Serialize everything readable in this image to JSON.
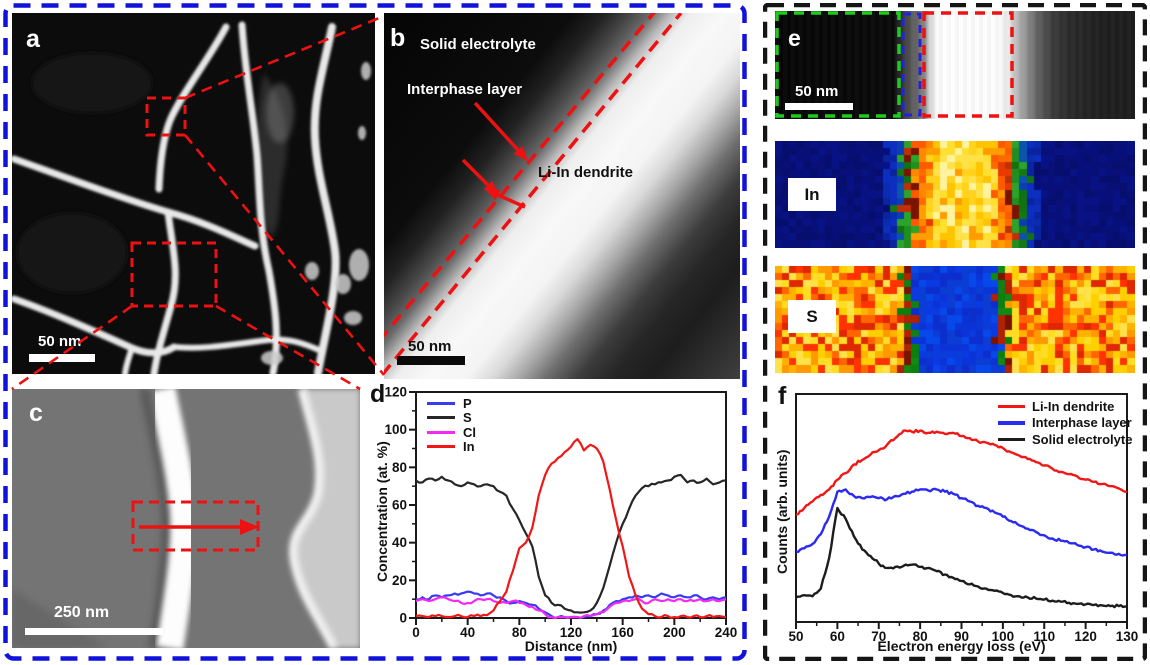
{
  "panels": {
    "a": {
      "label": "a",
      "scalebar": "50 nm"
    },
    "b": {
      "label": "b",
      "scalebar": "50 nm",
      "annotations": {
        "solid_electrolyte": "Solid electrolyte",
        "interphase_layer": "Interphase layer",
        "li_in_dendrite": "Li-In dendrite"
      }
    },
    "c": {
      "label": "c",
      "scalebar": "250 nm"
    },
    "d": {
      "label": "d"
    },
    "e": {
      "label": "e",
      "scalebar": "50 nm"
    },
    "f": {
      "label": "f"
    }
  },
  "element_maps": [
    {
      "label": "In",
      "band_center": 0.52,
      "zones": [
        [
          0.095,
          [
            "#ffd21e",
            "#ffe24a",
            "#ffc400",
            "#fff3a0",
            "#ff9d00",
            "#ffdf30"
          ]
        ],
        [
          0.135,
          [
            "#ff8800",
            "#ff5a00",
            "#e83a00",
            "#ff9e00",
            "#ff6a00"
          ]
        ],
        [
          0.16,
          [
            "#c03000",
            "#1f8f1f",
            "#2aa42a",
            "#7a1400"
          ]
        ],
        [
          0.185,
          [
            "#157815",
            "#0a55aa",
            "#0a3fb4",
            "#117211"
          ]
        ],
        [
          0.215,
          [
            "#0a2cb0",
            "#0a24a0",
            "#0c2fc0"
          ]
        ],
        [
          9,
          [
            "#081284",
            "#060e6e",
            "#081078",
            "#070f7a"
          ]
        ]
      ]
    },
    {
      "label": "S",
      "band_center": 0.505,
      "zones": [
        [
          0.115,
          [
            "#0a3ae0",
            "#0c2ecc",
            "#0748ea",
            "#0a34d8",
            "#0b3cd4"
          ]
        ],
        [
          0.15,
          [
            "#0c800c",
            "#b02200",
            "#108a10",
            "#7a1200",
            "#128012"
          ]
        ],
        [
          9,
          [
            "#ffd000",
            "#ff9900",
            "#ff6600",
            "#ff3300",
            "#ffe24a",
            "#e02800",
            "#ffb300",
            "#ffdd22"
          ]
        ]
      ]
    }
  ],
  "chart_data": [
    {
      "id": "concentration-profile",
      "type": "line",
      "xlabel": "Distance (nm)",
      "ylabel": "Concentration (at. %)",
      "xlim": [
        0,
        240
      ],
      "ylim": [
        0,
        120
      ],
      "xticks_major": 40,
      "xticks_minor": 20,
      "yticks_major": 20,
      "yticks_minor": 10,
      "x_start": 0,
      "x_step": 5,
      "legend_position": "top-left",
      "series": [
        {
          "name": "P",
          "color": "#3a3af2",
          "values": [
            10,
            11,
            10,
            12,
            11,
            12,
            13,
            13,
            14,
            13,
            12,
            13,
            12,
            11,
            9,
            8,
            9,
            8,
            7,
            5,
            3,
            1,
            0.5,
            0.5,
            0.5,
            0.5,
            0.5,
            1,
            2,
            4,
            7,
            9,
            10,
            11,
            12,
            11,
            12,
            11,
            13,
            12,
            11,
            12,
            11,
            12,
            11,
            10,
            11,
            10,
            11
          ]
        },
        {
          "name": "S",
          "color": "#262626",
          "values": [
            73,
            72,
            74,
            73,
            75,
            73,
            71,
            70,
            72,
            71,
            70,
            71,
            70,
            67,
            65,
            58,
            52,
            45,
            38,
            22,
            12,
            8,
            7,
            5,
            4,
            3,
            3,
            4,
            8,
            16,
            28,
            40,
            50,
            58,
            65,
            69,
            70,
            71,
            72,
            73,
            75,
            76,
            72,
            73,
            72,
            74,
            71,
            72,
            73
          ]
        },
        {
          "name": "Cl",
          "color": "#f22af2",
          "values": [
            9,
            10,
            9,
            10,
            11,
            10,
            9,
            8,
            8,
            9,
            10,
            10,
            9,
            8,
            8,
            9,
            8,
            7,
            6,
            4,
            2,
            0.5,
            0.5,
            0.5,
            0.5,
            0.5,
            1,
            1,
            2,
            3,
            6,
            8,
            9,
            9,
            10,
            9,
            8,
            10,
            9,
            10,
            9,
            10,
            9,
            9,
            10,
            9,
            10,
            9,
            10
          ]
        },
        {
          "name": "In",
          "color": "#f21717",
          "values": [
            1,
            1,
            0.5,
            1,
            1,
            0.5,
            1,
            1,
            0.5,
            1,
            1,
            1.5,
            4,
            9,
            14,
            25,
            37,
            40,
            48,
            65,
            76,
            82,
            85,
            88,
            91,
            95,
            89,
            92,
            90,
            83,
            68,
            52,
            38,
            22,
            12,
            5,
            2,
            1,
            0.5,
            1,
            0.5,
            1,
            0.5,
            1,
            0.5,
            1,
            0.5,
            1,
            0.5
          ]
        }
      ]
    },
    {
      "id": "eels-spectra",
      "type": "line",
      "xlabel": "Electron energy loss (eV)",
      "ylabel": "Counts (arb. units)",
      "xlim": [
        50,
        130
      ],
      "ylim": [
        0,
        1
      ],
      "xticks_major": 10,
      "xticks_minor": 5,
      "yticks": "none (arbitrary units)",
      "x_start": 50,
      "x_step": 2,
      "legend_position": "top-right",
      "series": [
        {
          "name": "Li-In dendrite",
          "color": "#f21717",
          "values": [
            0.47,
            0.5,
            0.53,
            0.56,
            0.585,
            0.63,
            0.66,
            0.7,
            0.72,
            0.745,
            0.765,
            0.79,
            0.82,
            0.855,
            0.85,
            0.855,
            0.845,
            0.85,
            0.84,
            0.845,
            0.83,
            0.82,
            0.805,
            0.8,
            0.79,
            0.775,
            0.755,
            0.74,
            0.725,
            0.71,
            0.695,
            0.68,
            0.665,
            0.655,
            0.645,
            0.63,
            0.62,
            0.61,
            0.6,
            0.59,
            0.575
          ]
        },
        {
          "name": "Interphase layer",
          "color": "#2a2af2",
          "values": [
            0.3,
            0.315,
            0.335,
            0.38,
            0.46,
            0.575,
            0.585,
            0.555,
            0.545,
            0.55,
            0.545,
            0.54,
            0.555,
            0.565,
            0.575,
            0.585,
            0.58,
            0.585,
            0.575,
            0.565,
            0.545,
            0.53,
            0.51,
            0.5,
            0.48,
            0.46,
            0.44,
            0.42,
            0.405,
            0.39,
            0.375,
            0.36,
            0.35,
            0.34,
            0.33,
            0.32,
            0.31,
            0.3,
            0.295,
            0.29,
            0.285
          ]
        },
        {
          "name": "Solid electrolyte",
          "color": "#1c1c1c",
          "values": [
            0.09,
            0.1,
            0.095,
            0.13,
            0.27,
            0.5,
            0.45,
            0.37,
            0.31,
            0.28,
            0.245,
            0.225,
            0.23,
            0.235,
            0.24,
            0.23,
            0.225,
            0.21,
            0.195,
            0.18,
            0.165,
            0.15,
            0.14,
            0.13,
            0.12,
            0.11,
            0.1,
            0.095,
            0.09,
            0.085,
            0.08,
            0.075,
            0.07,
            0.065,
            0.06,
            0.058,
            0.055,
            0.053,
            0.05,
            0.05,
            0.048
          ]
        }
      ]
    }
  ],
  "colors": {
    "left_border": "#1212dd",
    "right_border": "#151515",
    "annotation_red": "#ee1111",
    "box_green": "#1ecc1e",
    "box_blue": "#2222dd",
    "box_red": "#ee1111"
  }
}
